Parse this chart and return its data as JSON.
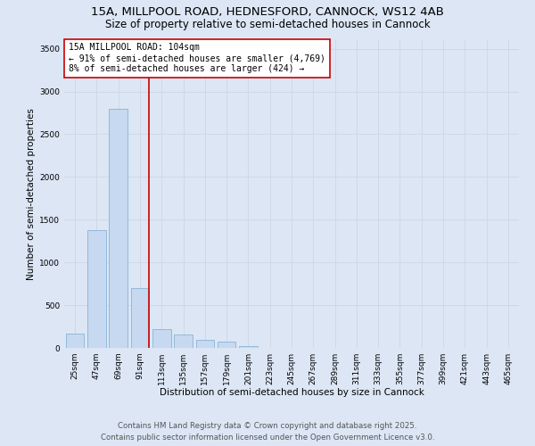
{
  "title_line1": "15A, MILLPOOL ROAD, HEDNESFORD, CANNOCK, WS12 4AB",
  "title_line2": "Size of property relative to semi-detached houses in Cannock",
  "xlabel": "Distribution of semi-detached houses by size in Cannock",
  "ylabel": "Number of semi-detached properties",
  "categories": [
    "25sqm",
    "47sqm",
    "69sqm",
    "91sqm",
    "113sqm",
    "135sqm",
    "157sqm",
    "179sqm",
    "201sqm",
    "223sqm",
    "245sqm",
    "267sqm",
    "289sqm",
    "311sqm",
    "333sqm",
    "355sqm",
    "377sqm",
    "399sqm",
    "421sqm",
    "443sqm",
    "465sqm"
  ],
  "values": [
    170,
    1380,
    2800,
    700,
    215,
    160,
    95,
    70,
    20,
    5,
    2,
    0,
    0,
    0,
    0,
    0,
    0,
    0,
    0,
    0,
    0
  ],
  "bar_color": "#c6d9f0",
  "bar_edge_color": "#7aaad0",
  "grid_color": "#d0d8e4",
  "bg_color": "#dce6f5",
  "vline_color": "#cc0000",
  "annotation_text": "15A MILLPOOL ROAD: 104sqm\n← 91% of semi-detached houses are smaller (4,769)\n8% of semi-detached houses are larger (424) →",
  "annotation_box_color": "#ffffff",
  "annotation_box_edge": "#cc0000",
  "ylim": [
    0,
    3600
  ],
  "yticks": [
    0,
    500,
    1000,
    1500,
    2000,
    2500,
    3000,
    3500
  ],
  "footer_line1": "Contains HM Land Registry data © Crown copyright and database right 2025.",
  "footer_line2": "Contains public sector information licensed under the Open Government Licence v3.0.",
  "title_fontsize": 9.5,
  "subtitle_fontsize": 8.5,
  "axis_label_fontsize": 7.5,
  "tick_fontsize": 6.5,
  "annotation_fontsize": 7,
  "footer_fontsize": 6.2
}
